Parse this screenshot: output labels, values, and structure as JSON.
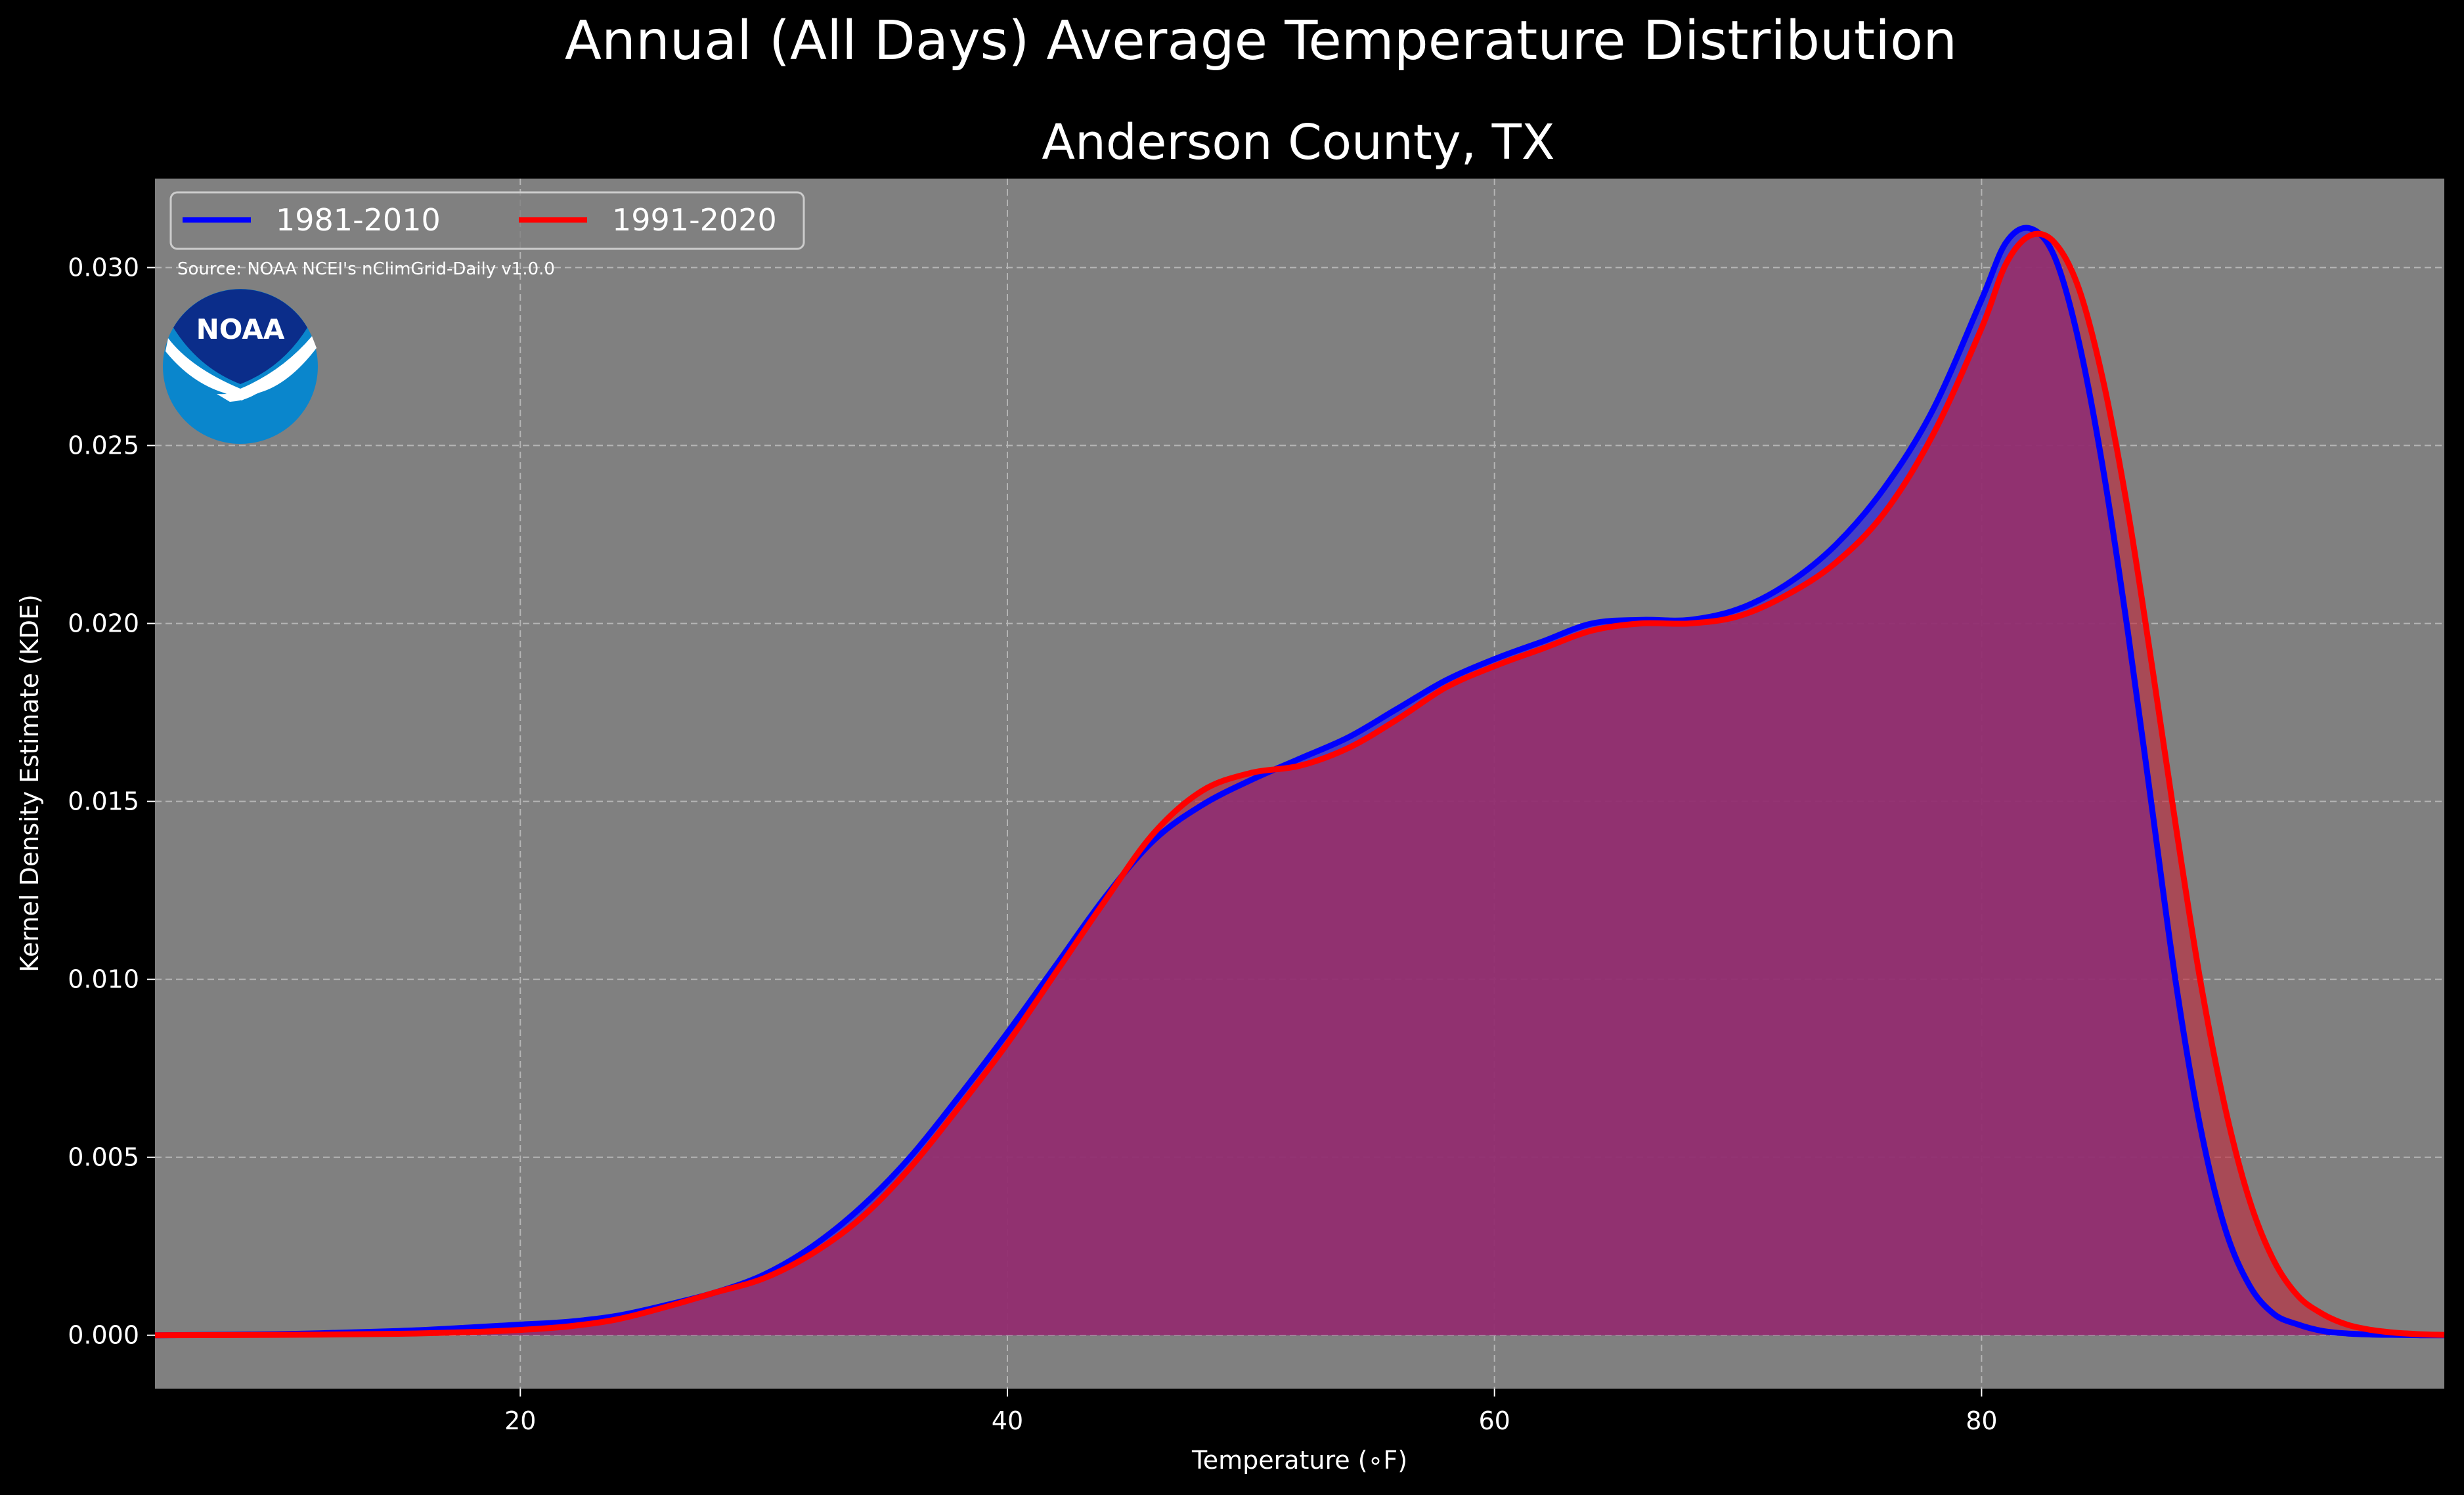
{
  "chart_data": {
    "type": "area",
    "title": "Annual (All Days) Average Temperature Distribution",
    "subtitle": "Anderson County, TX",
    "xlabel": "Temperature (∘F)",
    "ylabel": "Kernel Density Estimate (KDE)",
    "source": "Source: NOAA NCEI's nClimGrid-Daily v1.0.0",
    "logo_text": "NOAA",
    "xlim": [
      5,
      99
    ],
    "ylim": [
      -0.0015,
      0.0325
    ],
    "xticks": [
      20,
      40,
      60,
      80
    ],
    "xtick_labels": [
      "20",
      "40",
      "60",
      "80"
    ],
    "yticks": [
      0.0,
      0.005,
      0.01,
      0.015,
      0.02,
      0.025,
      0.03
    ],
    "ytick_labels": [
      "0.000",
      "0.005",
      "0.010",
      "0.015",
      "0.020",
      "0.025",
      "0.030"
    ],
    "grid": true,
    "legend_position": "top-left",
    "background": "#808080",
    "series": [
      {
        "name": "1981-2010",
        "color": "#0000ff",
        "fill": "#3a35d2",
        "x": [
          5,
          10,
          15,
          18,
          20,
          22,
          24,
          26,
          28,
          30,
          32,
          34,
          36,
          38,
          40,
          42,
          44,
          46,
          48,
          50,
          52,
          54,
          56,
          58,
          60,
          62,
          64,
          66,
          68,
          70,
          72,
          74,
          76,
          78,
          80,
          81,
          82,
          83,
          84,
          85,
          86,
          87,
          88,
          89,
          90,
          91,
          92,
          93,
          94,
          95,
          96,
          97,
          98,
          99
        ],
        "y": [
          0.0,
          3e-05,
          0.00012,
          0.00022,
          0.0003,
          0.00038,
          0.00055,
          0.00085,
          0.0012,
          0.0017,
          0.0025,
          0.0036,
          0.005,
          0.0067,
          0.0085,
          0.0104,
          0.0123,
          0.0139,
          0.0149,
          0.0156,
          0.0162,
          0.0168,
          0.0176,
          0.0184,
          0.019,
          0.0195,
          0.02,
          0.0201,
          0.0201,
          0.0204,
          0.0211,
          0.0222,
          0.0238,
          0.026,
          0.0291,
          0.0307,
          0.0311,
          0.0303,
          0.0279,
          0.0243,
          0.0198,
          0.0148,
          0.0098,
          0.0058,
          0.003,
          0.0014,
          0.0006,
          0.0003,
          0.00012,
          5e-05,
          2e-05,
          1e-05,
          0.0,
          0.0
        ]
      },
      {
        "name": "1991-2020",
        "color": "#ff0000",
        "fill": "#c0283c",
        "x": [
          5,
          10,
          15,
          18,
          20,
          22,
          24,
          26,
          28,
          30,
          32,
          34,
          36,
          38,
          40,
          42,
          44,
          46,
          48,
          50,
          52,
          54,
          56,
          58,
          60,
          62,
          64,
          66,
          68,
          70,
          72,
          74,
          76,
          78,
          80,
          81,
          82,
          83,
          84,
          85,
          86,
          87,
          88,
          89,
          90,
          91,
          92,
          93,
          94,
          95,
          96,
          97,
          98,
          99
        ],
        "y": [
          0.0,
          1e-05,
          4e-05,
          9e-05,
          0.00015,
          0.00025,
          0.00045,
          0.0008,
          0.0012,
          0.0016,
          0.0023,
          0.0033,
          0.0047,
          0.0064,
          0.0082,
          0.0102,
          0.0122,
          0.0141,
          0.0153,
          0.0158,
          0.016,
          0.0165,
          0.0173,
          0.0182,
          0.0188,
          0.0193,
          0.0198,
          0.02,
          0.02,
          0.0202,
          0.0208,
          0.0217,
          0.0231,
          0.0253,
          0.0283,
          0.0301,
          0.0309,
          0.0307,
          0.0294,
          0.0268,
          0.0232,
          0.0188,
          0.0142,
          0.0099,
          0.0064,
          0.0038,
          0.0021,
          0.0011,
          0.0006,
          0.0003,
          0.00015,
          7e-05,
          3e-05,
          1e-05
        ]
      }
    ]
  }
}
